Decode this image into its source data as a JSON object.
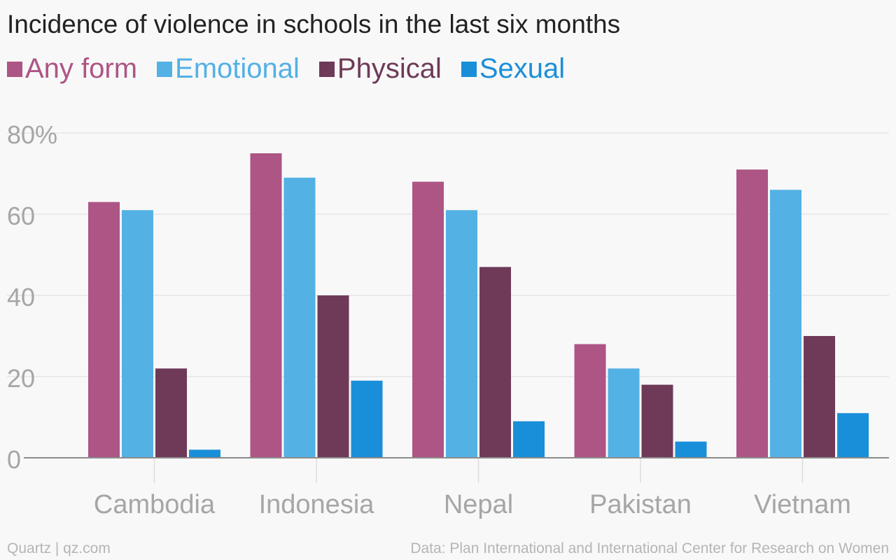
{
  "chart_data": {
    "type": "bar",
    "title": "Incidence of violence in schools in the last six months",
    "categories": [
      "Cambodia",
      "Indonesia",
      "Nepal",
      "Pakistan",
      "Vietnam"
    ],
    "series": [
      {
        "name": "Any form",
        "color": "#ad5585",
        "values": [
          63,
          75,
          68,
          28,
          71
        ]
      },
      {
        "name": "Emotional",
        "color": "#53b1e4",
        "values": [
          61,
          69,
          61,
          22,
          66
        ]
      },
      {
        "name": "Physical",
        "color": "#6e3a58",
        "values": [
          22,
          40,
          47,
          18,
          30
        ]
      },
      {
        "name": "Sexual",
        "color": "#1a8fd9",
        "values": [
          2,
          19,
          9,
          4,
          11
        ]
      }
    ],
    "ylim": [
      0,
      80
    ],
    "yticks": [
      0,
      20,
      40,
      60,
      80
    ],
    "ytick_labels": [
      "0",
      "20",
      "40",
      "60",
      "80%"
    ],
    "grid": true,
    "legend_position": "top-left"
  },
  "footer": {
    "source_brand": "Quartz | qz.com",
    "data_source": "Data: Plan International and International Center for Research on Women"
  }
}
